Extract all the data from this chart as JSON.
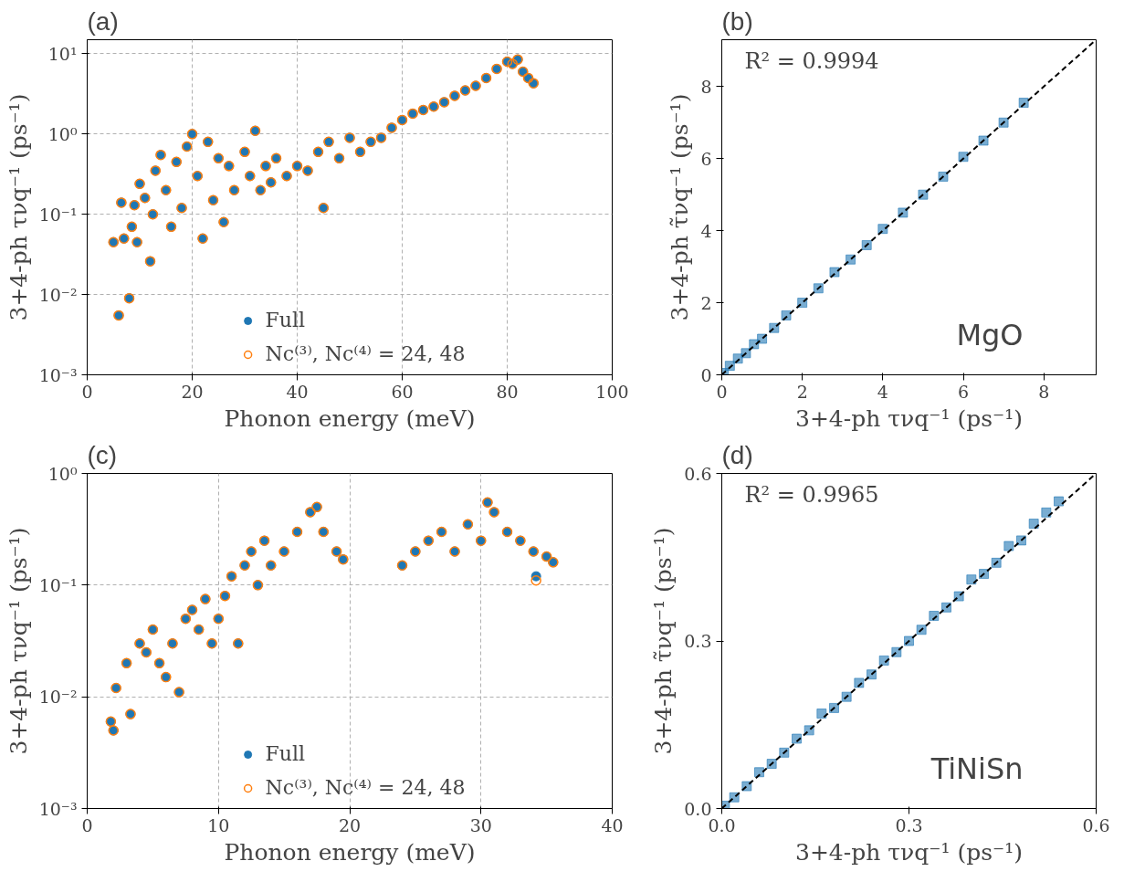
{
  "chart_data": [
    {
      "type": "scatter",
      "title": "(a)",
      "xlabel": "Phonon energy (meV)",
      "ylabel": "3+4-ph τνq⁻¹ (ps⁻¹)",
      "log": "y",
      "grid": true,
      "legend": "bottom",
      "marker": "circle",
      "xlim": [
        0,
        100
      ],
      "xticks": [
        0,
        20,
        40,
        60,
        80,
        100
      ],
      "ylim": [
        0.001,
        15
      ],
      "yticks": [
        {
          "value": 0.001,
          "label": "10⁻³"
        },
        {
          "value": 0.01,
          "label": "10⁻²"
        },
        {
          "value": 0.1,
          "label": "10⁻¹"
        },
        {
          "value": 1,
          "label": "10⁰"
        },
        {
          "value": 10,
          "label": "10¹"
        }
      ],
      "x": [
        5,
        6,
        6.5,
        7,
        8,
        8.5,
        9,
        9.5,
        10,
        11,
        12,
        12.5,
        13,
        14,
        15,
        16,
        17,
        18,
        19,
        20,
        21,
        22,
        23,
        24,
        25,
        26,
        27,
        28,
        30,
        31,
        32,
        33,
        34,
        35,
        36,
        38,
        40,
        42,
        44,
        45,
        46,
        48,
        50,
        52,
        54,
        56,
        58,
        60,
        62,
        64,
        66,
        68,
        70,
        72,
        74,
        76,
        78,
        80,
        81,
        82,
        83,
        84,
        85
      ],
      "series": [
        {
          "name": "Full",
          "color": "#1f77b4",
          "values": [
            0.045,
            0.0055,
            0.14,
            0.05,
            0.009,
            0.07,
            0.13,
            0.045,
            0.24,
            0.16,
            0.026,
            0.1,
            0.35,
            0.55,
            0.2,
            0.07,
            0.45,
            0.12,
            0.7,
            1.0,
            0.3,
            0.05,
            0.8,
            0.15,
            0.5,
            0.08,
            0.4,
            0.2,
            0.6,
            0.3,
            1.1,
            0.2,
            0.4,
            0.25,
            0.5,
            0.3,
            0.4,
            0.35,
            0.6,
            0.12,
            0.8,
            0.5,
            0.9,
            0.6,
            0.8,
            0.9,
            1.2,
            1.5,
            1.8,
            2.0,
            2.2,
            2.5,
            3.0,
            3.5,
            4.0,
            5.0,
            6.5,
            8.0,
            7.5,
            8.5,
            6.0,
            5.0,
            4.3
          ]
        },
        {
          "name": "Nc⁽³⁾, Nc⁽⁴⁾ = 24, 48",
          "color": "#ff7f0e",
          "values": [
            0.045,
            0.0055,
            0.14,
            0.05,
            0.009,
            0.07,
            0.13,
            0.045,
            0.24,
            0.16,
            0.026,
            0.1,
            0.35,
            0.55,
            0.2,
            0.07,
            0.45,
            0.12,
            0.7,
            1.0,
            0.3,
            0.05,
            0.8,
            0.15,
            0.5,
            0.08,
            0.4,
            0.2,
            0.6,
            0.3,
            1.1,
            0.2,
            0.4,
            0.25,
            0.5,
            0.3,
            0.4,
            0.35,
            0.6,
            0.12,
            0.8,
            0.5,
            0.9,
            0.6,
            0.8,
            0.9,
            1.2,
            1.5,
            1.8,
            2.0,
            2.2,
            2.5,
            3.0,
            3.5,
            4.0,
            5.0,
            6.5,
            8.0,
            7.5,
            8.5,
            6.0,
            5.0,
            4.3
          ]
        }
      ]
    },
    {
      "type": "scatter",
      "title": "(b)",
      "xlabel": "3+4-ph τνq⁻¹ (ps⁻¹)",
      "ylabel": "3+4-ph τ̃νq⁻¹ (ps⁻¹)",
      "marker": "square",
      "xlim": [
        0,
        9.3
      ],
      "xticks": [
        0,
        2,
        4,
        6,
        8
      ],
      "ylim": [
        0,
        9.3
      ],
      "yticks": [
        0,
        2,
        4,
        6,
        8
      ],
      "annotations": [
        "R² = 0.9994",
        "MgO"
      ],
      "x": [
        0.05,
        0.2,
        0.4,
        0.6,
        0.8,
        1.0,
        1.3,
        1.6,
        2.0,
        2.4,
        2.8,
        3.2,
        3.6,
        4.0,
        4.5,
        5.0,
        5.5,
        6.0,
        6.5,
        7.0,
        7.5
      ],
      "series": [
        {
          "color": "#1f77b4",
          "values": [
            0.05,
            0.25,
            0.45,
            0.6,
            0.85,
            1.0,
            1.3,
            1.65,
            2.0,
            2.4,
            2.85,
            3.2,
            3.6,
            4.05,
            4.5,
            5.0,
            5.5,
            6.05,
            6.5,
            7.0,
            7.55
          ]
        },
        {
          "type": "line",
          "line_style": "dashed",
          "marker": "none",
          "color": "#000000",
          "x": [
            0,
            9.3
          ],
          "values": [
            0,
            9.3
          ]
        }
      ]
    },
    {
      "type": "scatter",
      "title": "(c)",
      "xlabel": "Phonon energy (meV)",
      "ylabel": "3+4-ph τνq⁻¹ (ps⁻¹)",
      "log": "y",
      "grid": true,
      "legend": "bottom",
      "marker": "circle",
      "xlim": [
        0,
        40
      ],
      "xticks": [
        0,
        10,
        20,
        30,
        40
      ],
      "ylim": [
        0.001,
        1
      ],
      "yticks": [
        {
          "value": 0.001,
          "label": "10⁻³"
        },
        {
          "value": 0.01,
          "label": "10⁻²"
        },
        {
          "value": 0.1,
          "label": "10⁻¹"
        },
        {
          "value": 1,
          "label": "10⁰"
        }
      ],
      "x": [
        1.8,
        2,
        2.2,
        3,
        3.3,
        4,
        4.5,
        5,
        5.5,
        6,
        6.5,
        7,
        7.5,
        8,
        8.5,
        9,
        9.5,
        10,
        10.5,
        11,
        11.5,
        12,
        12.5,
        13,
        13.5,
        14,
        15,
        16,
        17,
        17.5,
        18,
        19,
        19.5,
        24,
        25,
        26,
        27,
        28,
        29,
        30,
        30.5,
        31,
        32,
        33,
        34,
        34.2,
        35,
        35.5
      ],
      "series": [
        {
          "name": "Full",
          "color": "#1f77b4",
          "values": [
            0.006,
            0.005,
            0.012,
            0.02,
            0.007,
            0.03,
            0.025,
            0.04,
            0.02,
            0.015,
            0.03,
            0.011,
            0.05,
            0.06,
            0.04,
            0.075,
            0.03,
            0.05,
            0.08,
            0.12,
            0.03,
            0.15,
            0.2,
            0.1,
            0.25,
            0.15,
            0.2,
            0.3,
            0.45,
            0.5,
            0.3,
            0.2,
            0.17,
            0.15,
            0.2,
            0.25,
            0.3,
            0.2,
            0.35,
            0.25,
            0.55,
            0.45,
            0.3,
            0.25,
            0.2,
            0.12,
            0.18,
            0.16
          ]
        },
        {
          "name": "Nc⁽³⁾, Nc⁽⁴⁾ = 24, 48",
          "color": "#ff7f0e",
          "values": [
            0.006,
            0.005,
            0.012,
            0.02,
            0.007,
            0.03,
            0.025,
            0.04,
            0.02,
            0.015,
            0.03,
            0.011,
            0.05,
            0.06,
            0.04,
            0.075,
            0.03,
            0.05,
            0.08,
            0.12,
            0.03,
            0.15,
            0.2,
            0.1,
            0.25,
            0.15,
            0.2,
            0.3,
            0.45,
            0.5,
            0.3,
            0.2,
            0.17,
            0.15,
            0.2,
            0.25,
            0.3,
            0.2,
            0.35,
            0.25,
            0.55,
            0.45,
            0.3,
            0.25,
            0.2,
            0.11,
            0.18,
            0.16
          ]
        }
      ]
    },
    {
      "type": "scatter",
      "title": "(d)",
      "xlabel": "3+4-ph τνq⁻¹ (ps⁻¹)",
      "ylabel": "3+4-ph τ̃νq⁻¹ (ps⁻¹)",
      "marker": "square",
      "xlim": [
        0,
        0.6
      ],
      "xticks": [
        {
          "value": 0,
          "label": "0.0"
        },
        0.3,
        0.6
      ],
      "ylim": [
        0,
        0.6
      ],
      "yticks": [
        {
          "value": 0,
          "label": "0.0"
        },
        0.3,
        0.6
      ],
      "annotations": [
        "R² = 0.9965",
        "TiNiSn"
      ],
      "x": [
        0.005,
        0.02,
        0.04,
        0.06,
        0.08,
        0.1,
        0.12,
        0.14,
        0.16,
        0.18,
        0.2,
        0.22,
        0.24,
        0.26,
        0.28,
        0.3,
        0.32,
        0.34,
        0.36,
        0.38,
        0.4,
        0.42,
        0.44,
        0.46,
        0.48,
        0.5,
        0.52,
        0.54
      ],
      "series": [
        {
          "color": "#1f77b4",
          "values": [
            0.005,
            0.02,
            0.04,
            0.065,
            0.08,
            0.1,
            0.125,
            0.14,
            0.17,
            0.18,
            0.2,
            0.225,
            0.24,
            0.265,
            0.28,
            0.3,
            0.32,
            0.345,
            0.36,
            0.38,
            0.41,
            0.42,
            0.44,
            0.47,
            0.48,
            0.51,
            0.53,
            0.55
          ]
        },
        {
          "type": "line",
          "line_style": "dashed",
          "marker": "none",
          "color": "#000000",
          "x": [
            0,
            0.6
          ],
          "values": [
            0,
            0.6
          ]
        }
      ]
    }
  ]
}
